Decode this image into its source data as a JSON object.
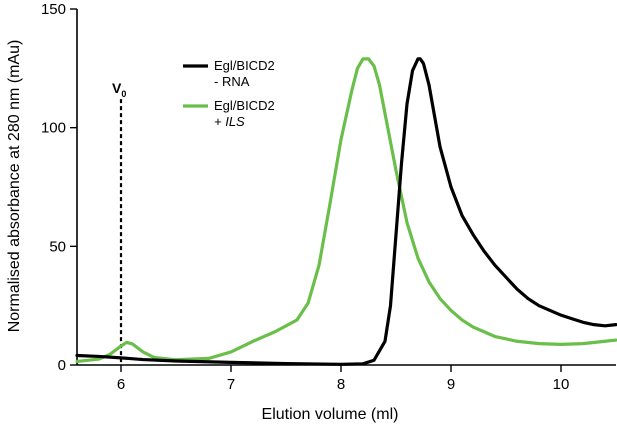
{
  "chart_data": {
    "type": "line",
    "xlabel": "Elution volume (ml)",
    "ylabel": "Normalised absorbance at 280 nm (mAu)",
    "xlim": [
      5.6,
      10.5
    ],
    "ylim": [
      0,
      150
    ],
    "xticks": [
      6,
      7,
      8,
      9,
      10
    ],
    "yticks": [
      0,
      50,
      100,
      150
    ],
    "grid": false,
    "legend_position": "top-center",
    "annotation": {
      "label": "V",
      "subscript": "0",
      "x": 6.0
    },
    "series": [
      {
        "label_lines": [
          "Egl/BICD2",
          "- RNA"
        ],
        "color": "#000000",
        "x": [
          5.6,
          5.8,
          6.0,
          6.2,
          6.5,
          7.0,
          7.5,
          8.0,
          8.2,
          8.3,
          8.4,
          8.45,
          8.5,
          8.55,
          8.6,
          8.65,
          8.7,
          8.72,
          8.75,
          8.8,
          8.85,
          8.9,
          9.0,
          9.1,
          9.2,
          9.3,
          9.4,
          9.5,
          9.6,
          9.7,
          9.8,
          9.9,
          10.0,
          10.1,
          10.2,
          10.3,
          10.4,
          10.5
        ],
        "values": [
          4,
          3.6,
          3,
          2.3,
          1.7,
          1.1,
          0.6,
          0.3,
          0.5,
          2,
          10,
          25,
          55,
          85,
          110,
          124,
          129,
          129,
          127,
          118,
          105,
          92,
          75,
          63,
          55,
          48,
          42,
          37,
          32,
          28,
          25,
          23,
          21,
          19.5,
          18,
          17,
          16.5,
          17
        ]
      },
      {
        "label_lines": [
          "Egl/BICD2",
          "+ ILS"
        ],
        "color": "#6abf4b",
        "x": [
          5.6,
          5.8,
          5.9,
          6.0,
          6.05,
          6.1,
          6.2,
          6.3,
          6.5,
          6.8,
          7.0,
          7.2,
          7.4,
          7.6,
          7.7,
          7.8,
          7.9,
          8.0,
          8.1,
          8.15,
          8.2,
          8.25,
          8.3,
          8.35,
          8.4,
          8.5,
          8.6,
          8.7,
          8.8,
          8.9,
          9.0,
          9.1,
          9.2,
          9.4,
          9.6,
          9.8,
          10.0,
          10.2,
          10.4,
          10.5
        ],
        "values": [
          1.5,
          2.5,
          4.5,
          8,
          9.5,
          9,
          5.5,
          3.2,
          2.2,
          2.8,
          5.5,
          10,
          14,
          19,
          26,
          42,
          68,
          95,
          116,
          125,
          129,
          129,
          126,
          118,
          106,
          82,
          60,
          45,
          35,
          28,
          23,
          19,
          16,
          12,
          10,
          9,
          8.7,
          9,
          10,
          10.5
        ]
      }
    ]
  }
}
